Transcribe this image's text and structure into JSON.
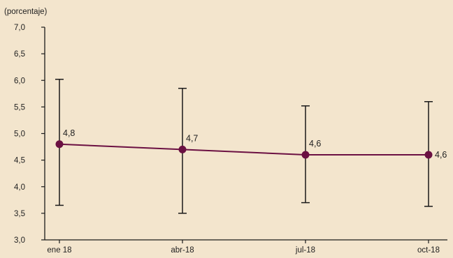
{
  "chart_data": {
    "type": "line",
    "unit_label": "(porcentaje)",
    "categories": [
      "ene 18",
      "abr-18",
      "jul-18",
      "oct-18"
    ],
    "values": [
      4.8,
      4.7,
      4.6,
      4.6
    ],
    "data_labels": [
      "4,8",
      "4,7",
      "4,6",
      "4,6"
    ],
    "error_low": [
      3.65,
      3.5,
      3.7,
      3.63
    ],
    "error_high": [
      6.02,
      5.85,
      5.52,
      5.6
    ],
    "ylim": [
      3.0,
      7.0
    ],
    "yticks": [
      3.0,
      3.5,
      4.0,
      4.5,
      5.0,
      5.5,
      6.0,
      6.5,
      7.0
    ],
    "ytick_labels": [
      "3,0",
      "3,5",
      "4,0",
      "4,5",
      "5,0",
      "5,5",
      "6,0",
      "6,5",
      "7,0"
    ],
    "grid": false,
    "colors": {
      "background": "#f3e5cd",
      "series": "#6b1042",
      "error_bars": "#1a1a1a",
      "axes": "#1a1a1a"
    }
  }
}
